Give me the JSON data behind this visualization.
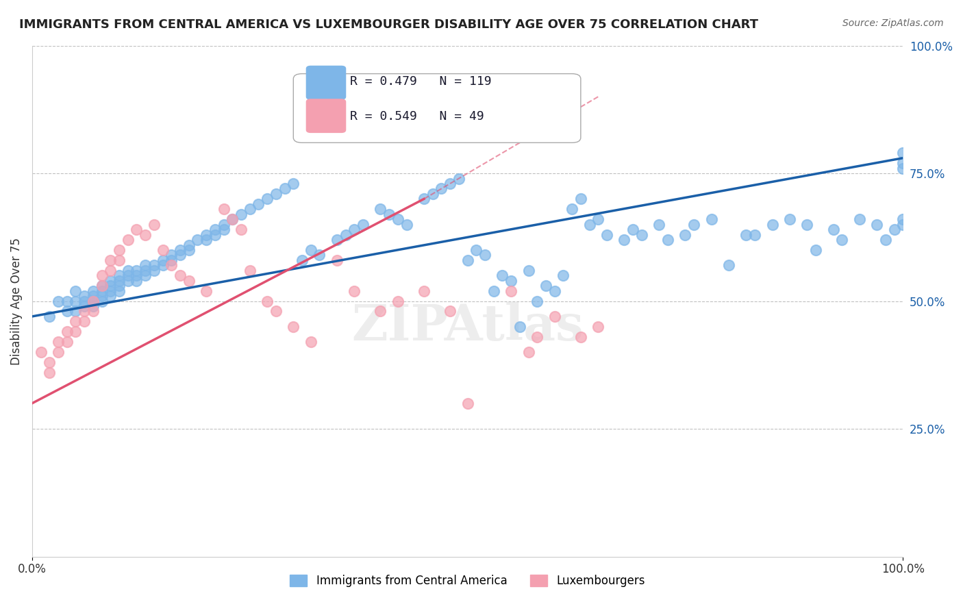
{
  "title": "IMMIGRANTS FROM CENTRAL AMERICA VS LUXEMBOURGER DISABILITY AGE OVER 75 CORRELATION CHART",
  "source": "Source: ZipAtlas.com",
  "xlabel": "",
  "ylabel": "Disability Age Over 75",
  "xlim": [
    0,
    100
  ],
  "ylim": [
    0,
    100
  ],
  "xtick_labels": [
    "0.0%",
    "100.0%"
  ],
  "ytick_labels": [
    "25.0%",
    "50.0%",
    "75.0%",
    "100.0%"
  ],
  "ytick_vals": [
    25,
    50,
    75,
    100
  ],
  "blue_R": 0.479,
  "blue_N": 119,
  "pink_R": 0.549,
  "pink_N": 49,
  "blue_color": "#7EB6E8",
  "pink_color": "#F4A0B0",
  "blue_line_color": "#1A5FA8",
  "pink_line_color": "#E05070",
  "watermark": "ZIPAtlas",
  "legend_label_blue": "Immigrants from Central America",
  "legend_label_pink": "Luxembourgers",
  "blue_scatter_x": [
    2,
    3,
    4,
    4,
    5,
    5,
    5,
    6,
    6,
    6,
    7,
    7,
    7,
    7,
    8,
    8,
    8,
    8,
    9,
    9,
    9,
    9,
    10,
    10,
    10,
    10,
    11,
    11,
    11,
    12,
    12,
    12,
    13,
    13,
    13,
    14,
    14,
    15,
    15,
    16,
    16,
    17,
    17,
    18,
    18,
    19,
    20,
    20,
    21,
    21,
    22,
    22,
    23,
    24,
    25,
    26,
    27,
    28,
    29,
    30,
    31,
    32,
    33,
    35,
    36,
    37,
    38,
    40,
    41,
    42,
    43,
    45,
    46,
    47,
    48,
    49,
    50,
    51,
    52,
    53,
    54,
    55,
    56,
    57,
    58,
    59,
    60,
    61,
    62,
    63,
    64,
    65,
    66,
    68,
    69,
    70,
    72,
    73,
    75,
    76,
    78,
    80,
    82,
    83,
    85,
    87,
    89,
    90,
    92,
    93,
    95,
    97,
    98,
    99,
    100,
    100,
    100,
    100,
    100
  ],
  "blue_scatter_y": [
    47,
    50,
    48,
    50,
    52,
    50,
    48,
    51,
    50,
    49,
    52,
    51,
    50,
    49,
    53,
    52,
    51,
    50,
    54,
    53,
    52,
    51,
    55,
    54,
    53,
    52,
    56,
    55,
    54,
    56,
    55,
    54,
    57,
    56,
    55,
    57,
    56,
    58,
    57,
    59,
    58,
    60,
    59,
    61,
    60,
    62,
    63,
    62,
    64,
    63,
    65,
    64,
    66,
    67,
    68,
    69,
    70,
    71,
    72,
    73,
    58,
    60,
    59,
    62,
    63,
    64,
    65,
    68,
    67,
    66,
    65,
    70,
    71,
    72,
    73,
    74,
    58,
    60,
    59,
    52,
    55,
    54,
    45,
    56,
    50,
    53,
    52,
    55,
    68,
    70,
    65,
    66,
    63,
    62,
    64,
    63,
    65,
    62,
    63,
    65,
    66,
    57,
    63,
    63,
    65,
    66,
    65,
    60,
    64,
    62,
    66,
    65,
    62,
    64,
    65,
    66,
    76,
    77,
    79
  ],
  "pink_scatter_x": [
    1,
    2,
    2,
    3,
    3,
    4,
    4,
    5,
    5,
    6,
    6,
    7,
    7,
    8,
    8,
    9,
    9,
    10,
    10,
    11,
    12,
    13,
    14,
    15,
    16,
    17,
    18,
    20,
    22,
    23,
    24,
    25,
    27,
    28,
    30,
    32,
    35,
    37,
    40,
    42,
    45,
    48,
    50,
    55,
    57,
    58,
    60,
    63,
    65
  ],
  "pink_scatter_y": [
    40,
    38,
    36,
    42,
    40,
    44,
    42,
    46,
    44,
    48,
    46,
    50,
    48,
    55,
    53,
    58,
    56,
    60,
    58,
    62,
    64,
    63,
    65,
    60,
    57,
    55,
    54,
    52,
    68,
    66,
    64,
    56,
    50,
    48,
    45,
    42,
    58,
    52,
    48,
    50,
    52,
    48,
    30,
    52,
    40,
    43,
    47,
    43,
    45
  ],
  "blue_trend_x": [
    0,
    100
  ],
  "blue_trend_y": [
    47,
    78
  ],
  "pink_trend_x": [
    0,
    45
  ],
  "pink_trend_y": [
    30,
    70
  ]
}
